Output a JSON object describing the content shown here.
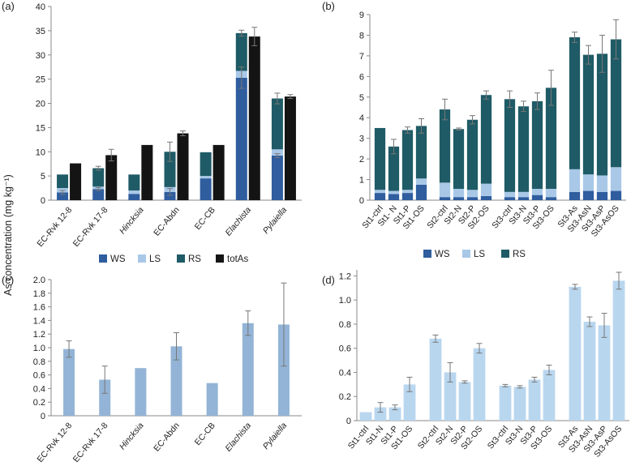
{
  "figure": {
    "ylabel_shared": "As concentration (mg kg⁻¹)"
  },
  "colors": {
    "WS": "#2f5d9e",
    "LS": "#a9c8e8",
    "RS": "#1f5b66",
    "totAs": "#141414",
    "single_c": "#93b4d6",
    "single_d": "#b9d6ef",
    "errorbar": "#777777"
  },
  "chart_data": [
    {
      "panel": "(a)",
      "type": "bar",
      "stacked_with_side_bar": true,
      "categories": [
        "EC-Rvk 12-8",
        "EC-Rvk 17-8",
        "Hincksia",
        "EC-Abdn",
        "EC-CB",
        "Elachista",
        "Pylaiella"
      ],
      "italic_categories": [
        "Hincksia",
        "Elachista",
        "Pylaiella"
      ],
      "ylim": [
        0,
        40
      ],
      "yticks": [
        0,
        5,
        10,
        15,
        20,
        25,
        30,
        35,
        40
      ],
      "legend": [
        "WS",
        "LS",
        "RS",
        "totAs"
      ],
      "legend_position": "bottom",
      "series": [
        {
          "name": "WS",
          "values": [
            1.6,
            2.3,
            1.3,
            1.7,
            4.5,
            25.3,
            9.2
          ]
        },
        {
          "name": "LS",
          "values": [
            0.9,
            0.5,
            0.7,
            1.0,
            0.5,
            1.4,
            1.3
          ]
        },
        {
          "name": "RS",
          "values": [
            2.8,
            3.8,
            3.3,
            7.3,
            4.9,
            7.8,
            10.5
          ]
        },
        {
          "name": "totAs",
          "values": [
            7.6,
            9.3,
            11.4,
            13.8,
            11.4,
            33.8,
            21.4
          ]
        }
      ],
      "stack_error": [
        0,
        0.4,
        0,
        2.0,
        0,
        0.6,
        1.1
      ],
      "ws_error": [
        0.4,
        0.3,
        0,
        0.7,
        0,
        2.2,
        0.4
      ],
      "totAs_error": [
        0,
        1.2,
        0,
        0.5,
        0,
        1.9,
        0.4
      ]
    },
    {
      "panel": "(b)",
      "type": "bar",
      "stacked": true,
      "groups": [
        [
          "St1-ctrl",
          "St1- N",
          "St1-P",
          "St1-OS"
        ],
        [
          "St2-ctrl",
          "St2-N",
          "St2-P",
          "St2-OS"
        ],
        [
          "St3-ctrl",
          "St3-N",
          "St3-P",
          "St3-OS"
        ],
        [
          "St3-As",
          "St3-AsN",
          "St3-AsP",
          "St3-AsOS"
        ]
      ],
      "ylim": [
        0,
        9
      ],
      "yticks": [
        0,
        1,
        2,
        3,
        4,
        5,
        6,
        7,
        8,
        9
      ],
      "legend": [
        "WS",
        "LS",
        "RS"
      ],
      "legend_position": "bottom",
      "series": [
        {
          "name": "WS",
          "values": [
            0.35,
            0.3,
            0.35,
            0.75,
            0.15,
            0.15,
            0.15,
            0.2,
            0.15,
            0.15,
            0.25,
            0.15,
            0.4,
            0.45,
            0.4,
            0.45
          ]
        },
        {
          "name": "LS",
          "values": [
            0.15,
            0.15,
            0.15,
            0.3,
            0.7,
            0.4,
            0.35,
            0.6,
            0.25,
            0.25,
            0.3,
            0.4,
            1.1,
            0.8,
            0.8,
            1.15
          ]
        },
        {
          "name": "RS",
          "values": [
            3.0,
            2.15,
            2.9,
            2.55,
            3.55,
            2.9,
            3.4,
            4.3,
            4.5,
            4.15,
            4.25,
            4.9,
            6.4,
            5.8,
            5.9,
            6.2
          ]
        }
      ],
      "errors": [
        0,
        0.35,
        0.15,
        0.35,
        0.5,
        0.05,
        0.2,
        0.2,
        0.4,
        0.25,
        0.4,
        0.85,
        0.25,
        0.45,
        0.9,
        0.95
      ]
    },
    {
      "panel": "(c)",
      "type": "bar",
      "categories": [
        "EC-Rvk 12-8",
        "EC-Rvk 17-8",
        "Hincksia",
        "EC-Abdn",
        "EC-CB",
        "Elachista",
        "Pylaiella"
      ],
      "italic_categories": [
        "Hincksia",
        "Elachista",
        "Pylaiella"
      ],
      "ylim": [
        0,
        2.0
      ],
      "yticks": [
        "0",
        "0.2",
        "0.4",
        "0.6",
        "0.8",
        "1.0",
        "1.2",
        "1.4",
        "1.6",
        "1.8",
        "2.0"
      ],
      "values": [
        0.98,
        0.53,
        0.7,
        1.02,
        0.48,
        1.36,
        1.34
      ],
      "errors": [
        0.12,
        0.2,
        0,
        0.2,
        0,
        0.18,
        0.61
      ]
    },
    {
      "panel": "(d)",
      "type": "bar",
      "groups": [
        [
          "St1-ctrl",
          "St1-N",
          "St1-P",
          "St1-OS"
        ],
        [
          "St2-ctrl",
          "St2-N",
          "St2-P",
          "St2-OS"
        ],
        [
          "St3-ctrl",
          "St3-N",
          "St3-P",
          "St3-OS"
        ],
        [
          "St3-As",
          "St3-AsN",
          "St3-AsP",
          "St3-AsOS"
        ]
      ],
      "ylim": [
        0,
        1.25
      ],
      "yticks": [
        "0",
        "0.2",
        "0.4",
        "0.6",
        "0.8",
        "1.0",
        "1.2"
      ],
      "values": [
        0.07,
        0.11,
        0.11,
        0.3,
        0.68,
        0.4,
        0.32,
        0.6,
        0.29,
        0.28,
        0.34,
        0.42,
        1.11,
        0.82,
        0.79,
        1.16
      ],
      "errors": [
        0,
        0.04,
        0.02,
        0.06,
        0.03,
        0.08,
        0.01,
        0.04,
        0.01,
        0.01,
        0.02,
        0.04,
        0.02,
        0.04,
        0.1,
        0.07
      ]
    }
  ]
}
